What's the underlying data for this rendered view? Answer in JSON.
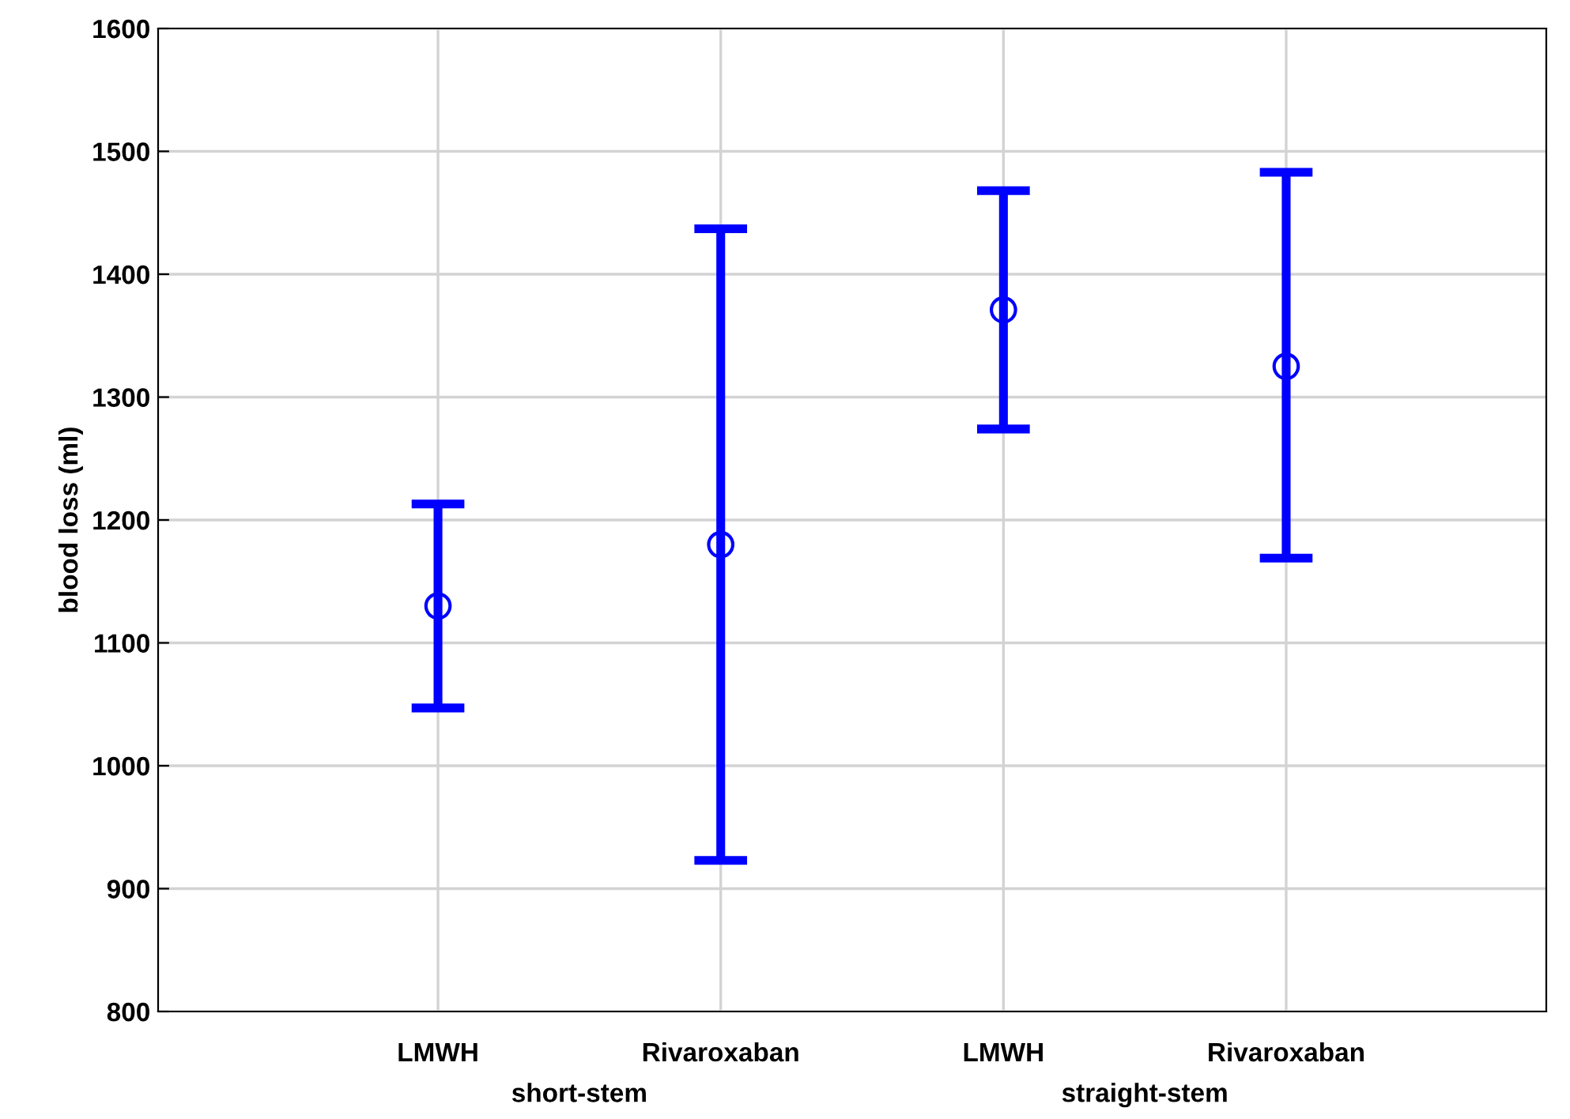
{
  "chart_data": {
    "type": "scatter",
    "ylabel": "blood loss (ml)",
    "categories": [
      "LMWH",
      "Rivaroxaban",
      "LMWH",
      "Rivaroxaban"
    ],
    "series": [
      {
        "color": "#0000ff",
        "values": [
          1130,
          1180,
          1371,
          1325
        ],
        "errors": [
          [
            1047,
            1213
          ],
          [
            923,
            1437
          ],
          [
            1274,
            1468
          ],
          [
            1169,
            1483
          ]
        ]
      }
    ],
    "annotations": [
      "short-stem",
      "straight-stem"
    ],
    "ylim": [
      800,
      1600
    ],
    "yticks": [
      800,
      900,
      1000,
      1100,
      1200,
      1300,
      1400,
      1500,
      1600
    ],
    "grid": true,
    "marker": "circle",
    "legend": false
  }
}
